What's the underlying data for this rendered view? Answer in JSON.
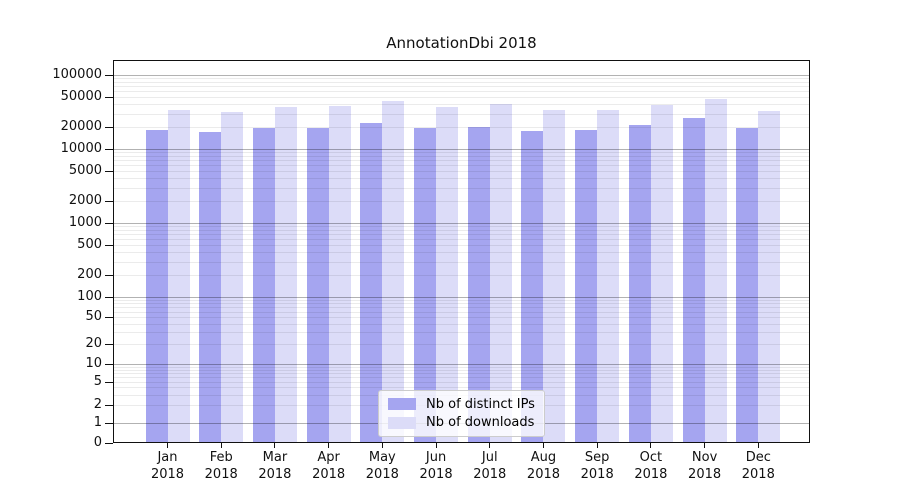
{
  "chart_data": {
    "type": "bar",
    "title": "AnnotationDbi 2018",
    "year": "2018",
    "categories": [
      "Jan",
      "Feb",
      "Mar",
      "Apr",
      "May",
      "Jun",
      "Jul",
      "Aug",
      "Sep",
      "Oct",
      "Nov",
      "Dec"
    ],
    "series": [
      {
        "name": "Nb of distinct IPs",
        "color": "#a5a5f0",
        "values": [
          18100,
          17000,
          19200,
          19200,
          22400,
          19200,
          19800,
          17500,
          18100,
          21100,
          26200,
          19200
        ]
      },
      {
        "name": "Nb of downloads",
        "color": "#dcdcf8",
        "values": [
          33600,
          31600,
          37000,
          38100,
          44600,
          37000,
          40500,
          33600,
          33600,
          39400,
          47400,
          32700
        ]
      }
    ],
    "xlabel": "",
    "ylabel": "",
    "y_scale": "log-like (0,1,2,5,... decades)",
    "ylim": [
      0,
      160000
    ],
    "grid": "horizontal major and minor, drawn over bars",
    "legend_position": "lower center",
    "y_ticks": [
      {
        "label": "100000",
        "value": 100000
      },
      {
        "label": "50000",
        "value": 50000
      },
      {
        "label": "20000",
        "value": 20000
      },
      {
        "label": "10000",
        "value": 10000
      },
      {
        "label": "5000",
        "value": 5000
      },
      {
        "label": "2000",
        "value": 2000
      },
      {
        "label": "1000",
        "value": 1000
      },
      {
        "label": "500",
        "value": 500
      },
      {
        "label": "200",
        "value": 200
      },
      {
        "label": "100",
        "value": 100
      },
      {
        "label": "50",
        "value": 50
      },
      {
        "label": "20",
        "value": 20
      },
      {
        "label": "10",
        "value": 10
      },
      {
        "label": "5",
        "value": 5
      },
      {
        "label": "2",
        "value": 2
      },
      {
        "label": "1",
        "value": 1
      },
      {
        "label": "0",
        "value": 0
      }
    ]
  }
}
